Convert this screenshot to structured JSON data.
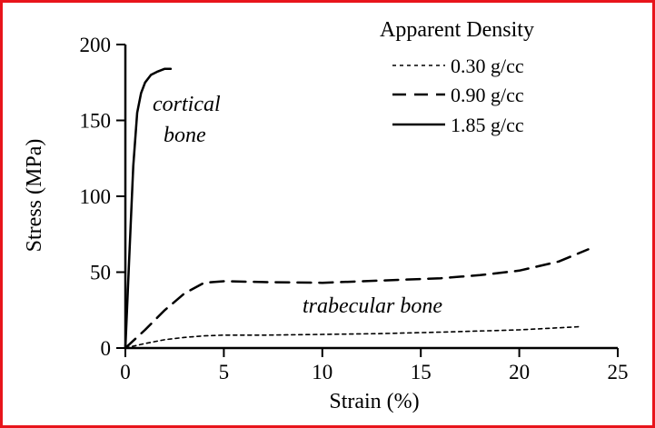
{
  "chart_data": {
    "type": "line",
    "xlabel": "Strain (%)",
    "ylabel": "Stress (MPa)",
    "xlim": [
      0,
      25
    ],
    "ylim": [
      0,
      200
    ],
    "xticks": [
      0,
      5,
      10,
      15,
      20,
      25
    ],
    "yticks": [
      0,
      50,
      100,
      150,
      200
    ],
    "grid": false,
    "legend": {
      "title": "Apparent Density",
      "placement": "top-right"
    },
    "series": [
      {
        "name": "0.30 g/cc",
        "style": "dotted",
        "x": [
          0,
          1,
          2,
          3,
          4,
          5,
          7,
          10,
          13,
          16,
          20,
          23
        ],
        "y": [
          0,
          3,
          5.5,
          7,
          8,
          8.5,
          8.5,
          9,
          9.5,
          10.5,
          12,
          14
        ]
      },
      {
        "name": "0.90 g/cc",
        "style": "dashed",
        "x": [
          0,
          1,
          2,
          3,
          4,
          5,
          7,
          10,
          13,
          16,
          18,
          20,
          22,
          23.5
        ],
        "y": [
          0,
          12,
          25,
          36,
          43,
          44,
          43.5,
          43,
          44.5,
          46,
          48,
          51,
          57,
          65
        ]
      },
      {
        "name": "1.85 g/cc",
        "style": "solid",
        "x": [
          0,
          0.2,
          0.4,
          0.6,
          0.8,
          1.0,
          1.3,
          1.6,
          2.0,
          2.3
        ],
        "y": [
          0,
          60,
          120,
          155,
          168,
          175,
          180,
          182,
          184,
          184
        ]
      }
    ],
    "annotations": [
      {
        "text": "cortical bone",
        "lines": [
          "cortical",
          "bone"
        ]
      },
      {
        "text": "trabecular bone"
      }
    ]
  }
}
